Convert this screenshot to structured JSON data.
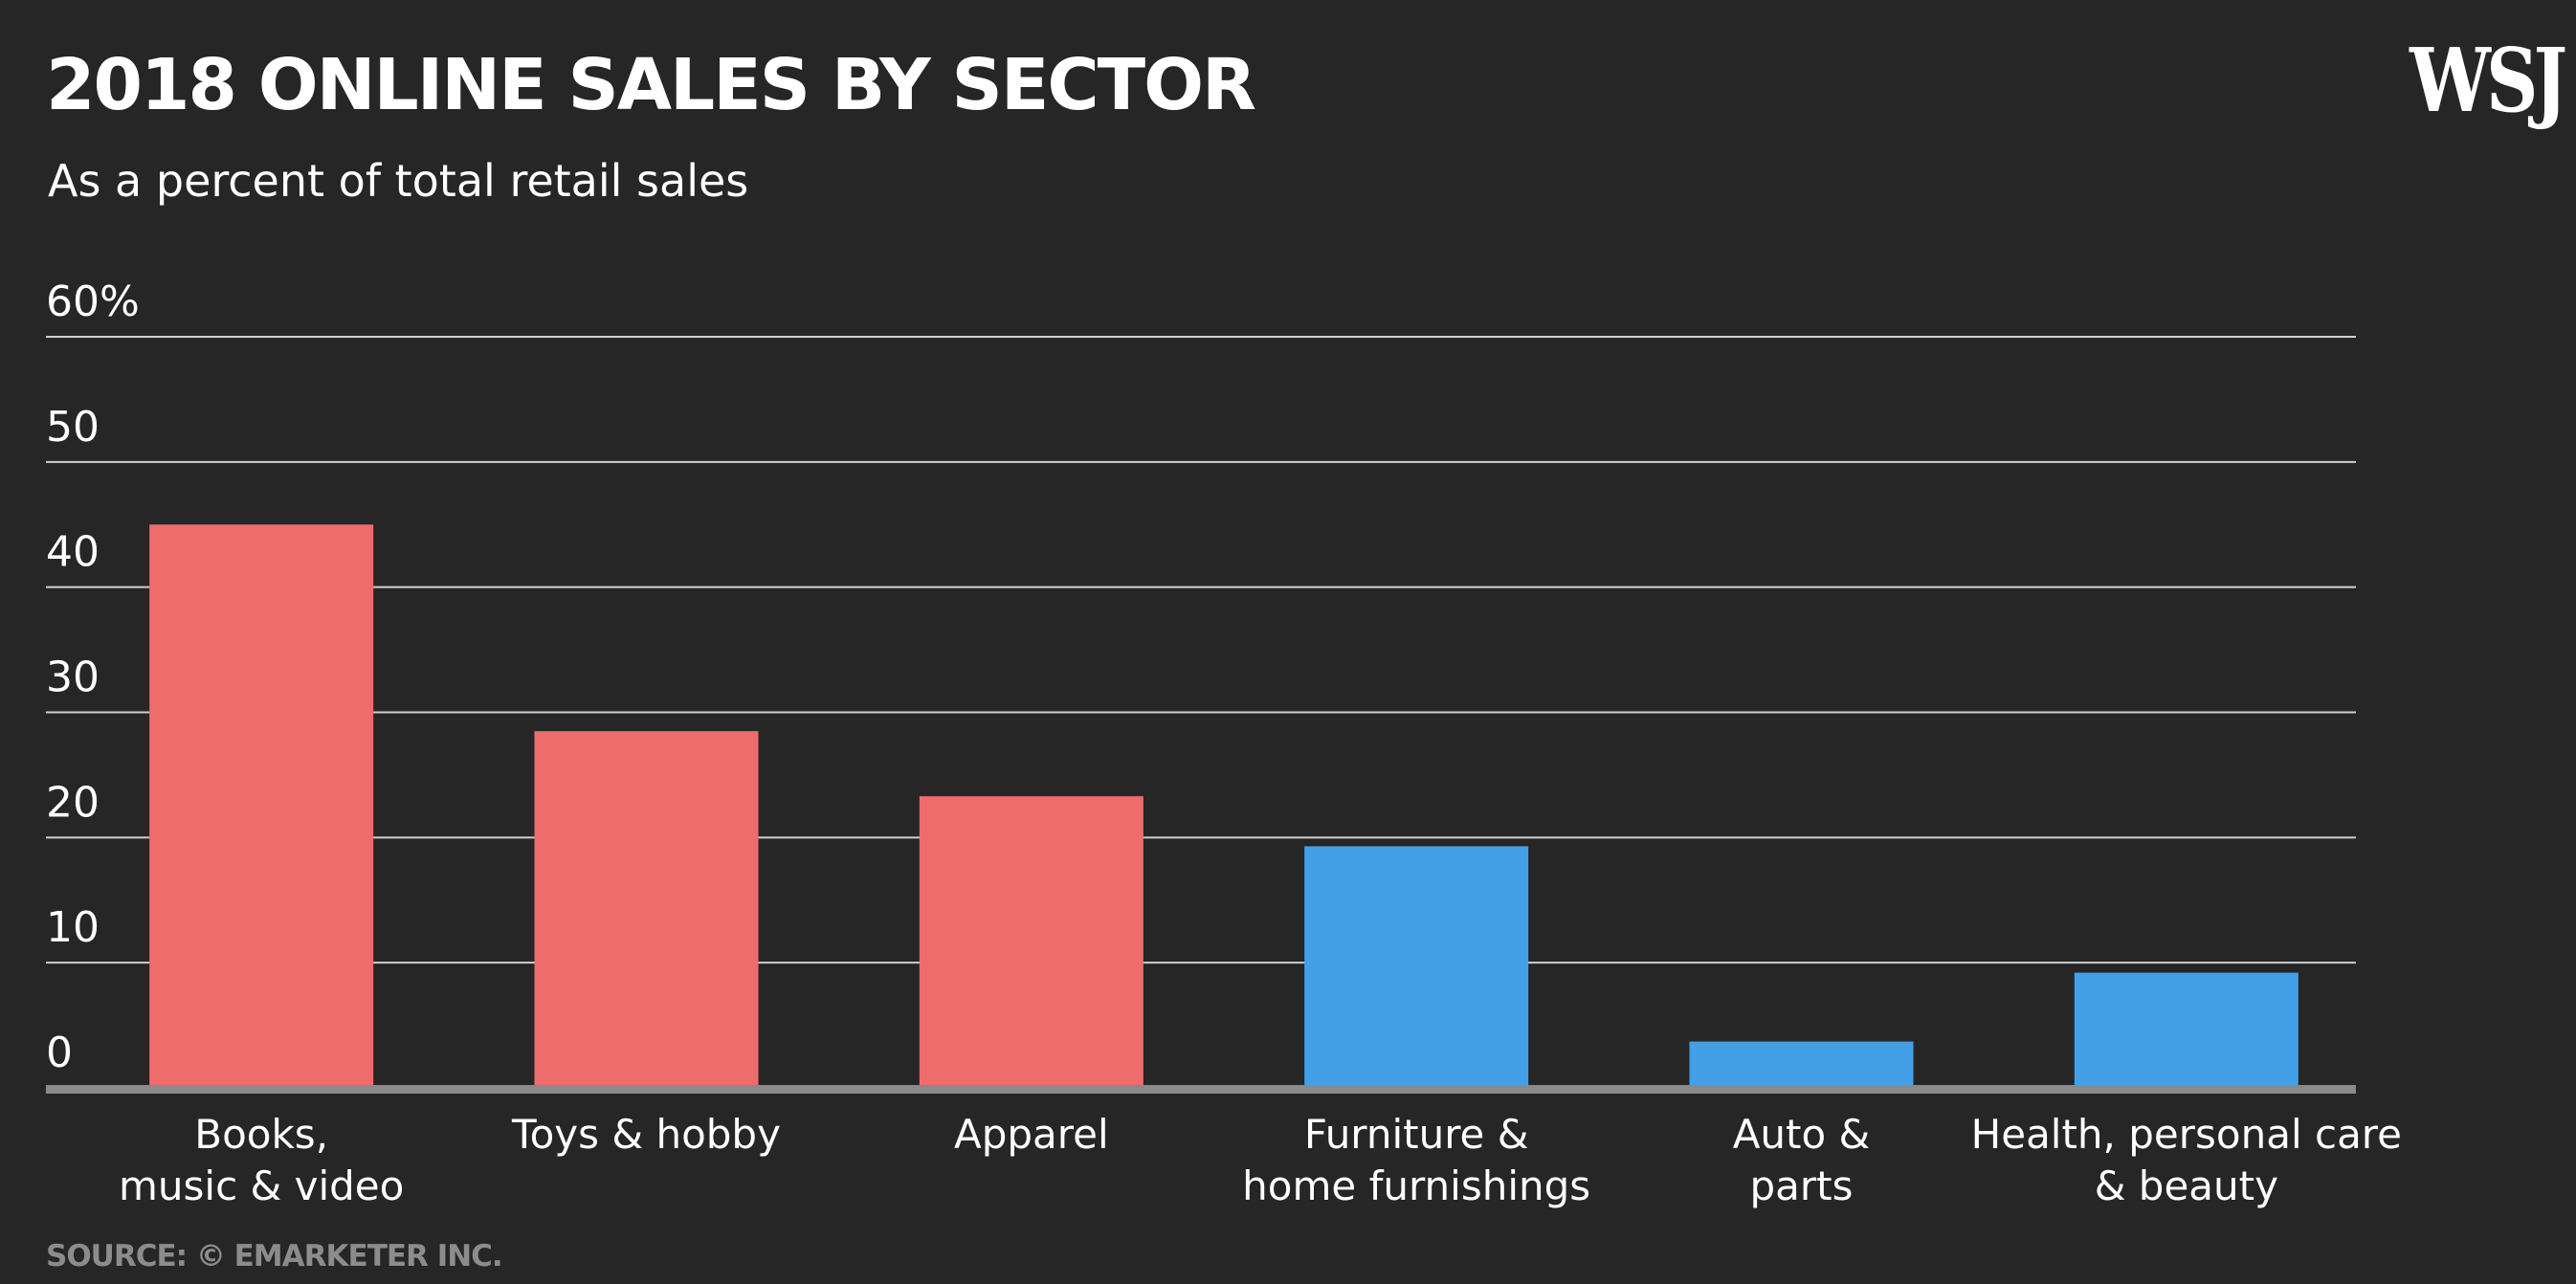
{
  "logo_text": "WSJ",
  "source": "SOURCE: © EMARKETER INC.",
  "chart_data": {
    "type": "bar",
    "title": "2018 ONLINE SALES BY SECTOR",
    "subtitle": "As a percent of total retail sales",
    "xlabel": "",
    "ylabel": "",
    "ylim": [
      0,
      60
    ],
    "yticks": [
      0,
      10,
      20,
      30,
      40,
      50,
      60
    ],
    "ytick_labels": [
      "0",
      "10",
      "20",
      "30",
      "40",
      "50",
      "60%"
    ],
    "grid": true,
    "categories": [
      [
        "Books,",
        "music & video"
      ],
      [
        "Toys & hobby"
      ],
      [
        "Apparel"
      ],
      [
        "Furniture &",
        "home furnishings"
      ],
      [
        "Auto &",
        "parts"
      ],
      [
        "Health, personal care",
        "& beauty"
      ]
    ],
    "values": [
      45,
      28.5,
      23.3,
      19.3,
      3.7,
      9.2
    ],
    "bar_colors": [
      "#ed6d6d",
      "#ed6d6d",
      "#ed6d6d",
      "#44a0e6",
      "#44a0e6",
      "#44a0e6"
    ],
    "colors": {
      "background": "#262626",
      "gridline": "#d0d0d0",
      "baseline": "#8a8a8a",
      "source_text": "#8c8c8c"
    }
  }
}
